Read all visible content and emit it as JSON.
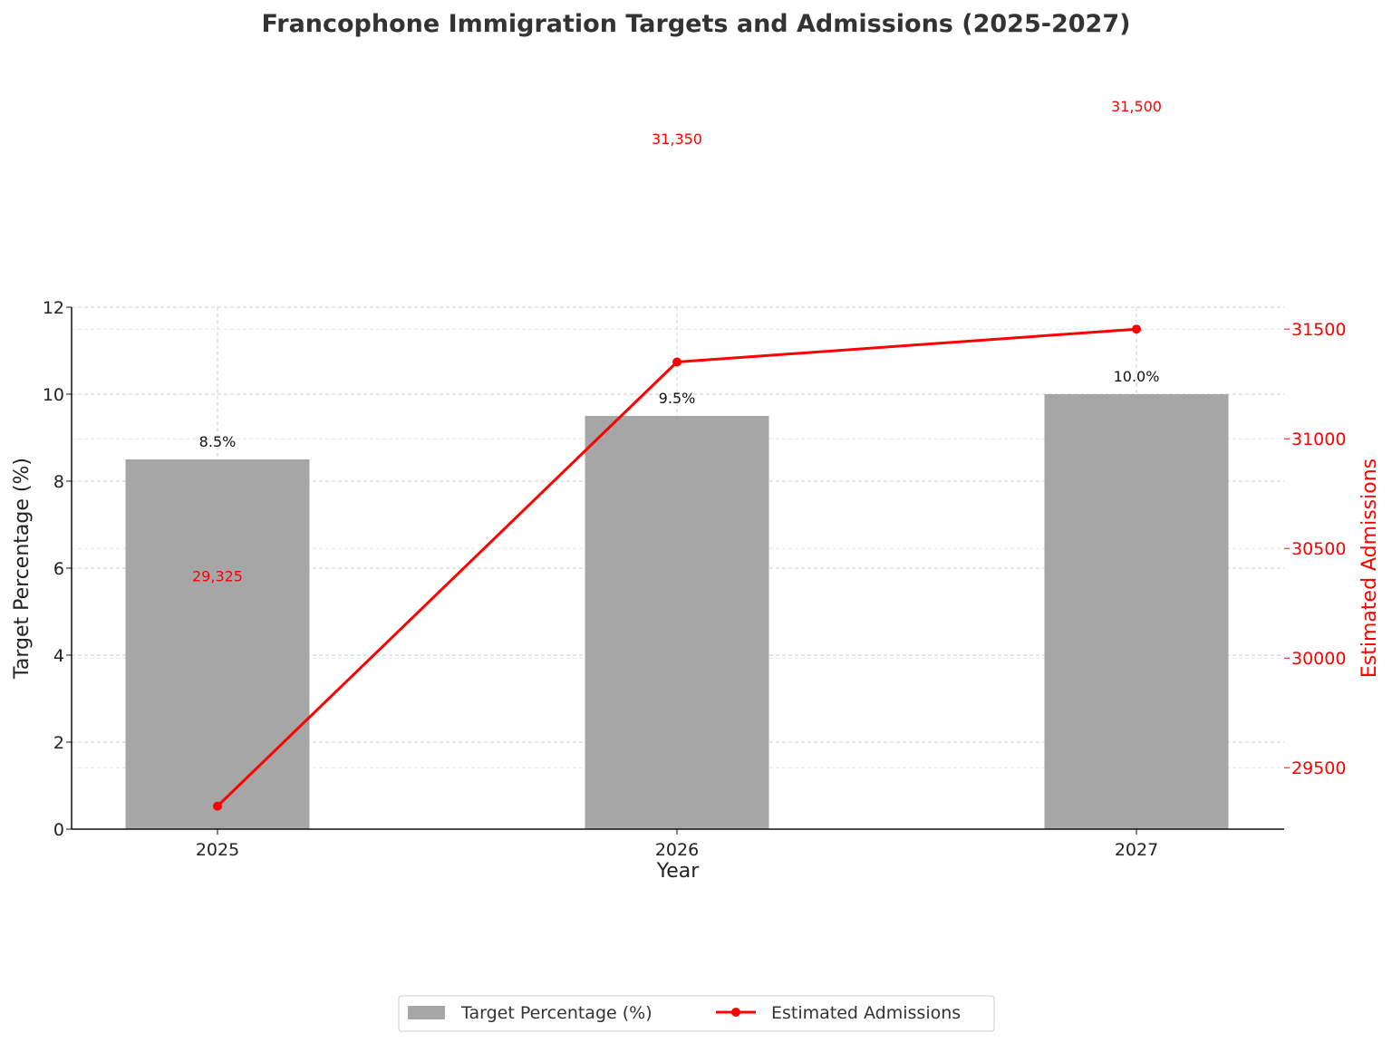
{
  "chart_data": {
    "type": "bar",
    "title": "Francophone Immigration Targets and Admissions (2025-2027)",
    "xlabel": "Year",
    "ylabel": "Target Percentage (%)",
    "ylabel_right": "Estimated Admissions",
    "categories": [
      "2025",
      "2026",
      "2027"
    ],
    "ylim": [
      0,
      12
    ],
    "yticks": [
      0,
      2,
      4,
      6,
      8,
      10,
      12
    ],
    "ylim_right": [
      29220,
      31600
    ],
    "yticks_right": [
      29500,
      30000,
      30500,
      31000,
      31500
    ],
    "grid": true,
    "legend_position": "bottom-center",
    "series": [
      {
        "name": "Target Percentage (%)",
        "kind": "bar",
        "color": "#a6a6a6",
        "values": [
          8.5,
          9.5,
          10.0
        ],
        "labels": [
          "8.5%",
          "9.5%",
          "10.0%"
        ]
      },
      {
        "name": "Estimated Admissions",
        "kind": "line",
        "color": "#ff0000",
        "axis": "right",
        "values": [
          29325,
          31350,
          31500
        ],
        "labels": [
          "29,325",
          "31,350",
          "31,500"
        ]
      }
    ]
  }
}
